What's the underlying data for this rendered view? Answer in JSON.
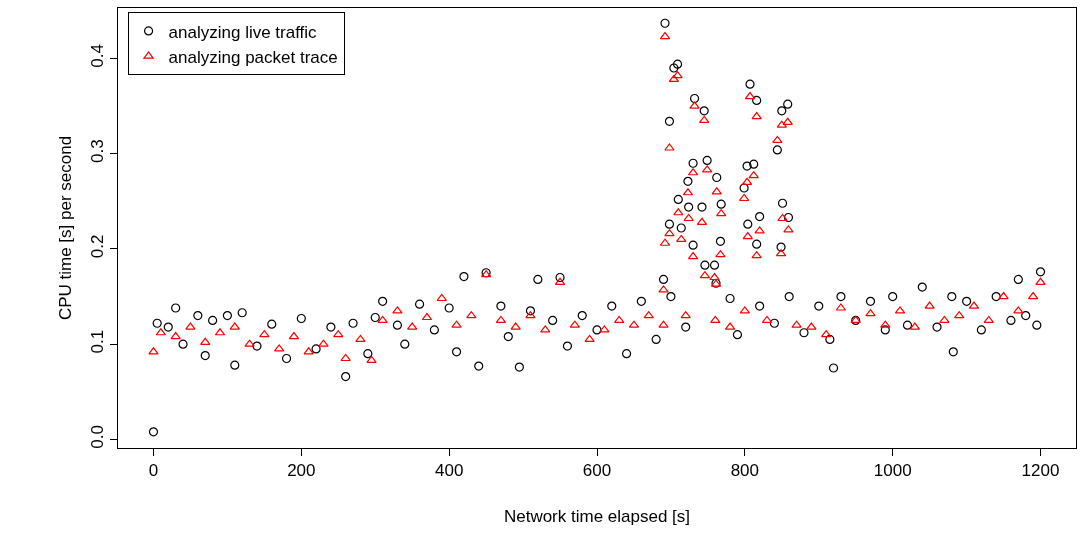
{
  "chart_data": {
    "type": "scatter",
    "xlabel": "Network time elapsed [s]",
    "ylabel": "CPU time [s] per second",
    "xlim": [
      -48,
      1248
    ],
    "ylim": [
      -0.009,
      0.453
    ],
    "xticks": [
      0,
      200,
      400,
      600,
      800,
      1000,
      1200
    ],
    "yticks": [
      {
        "value": 0,
        "label": "0.0"
      },
      {
        "value": 0.1,
        "label": "0.1"
      },
      {
        "value": 0.2,
        "label": "0.2"
      },
      {
        "value": 0.3,
        "label": "0.3"
      },
      {
        "value": 0.4,
        "label": "0.4"
      }
    ],
    "legend": "top left",
    "series": [
      {
        "name": "analyzing live traffic",
        "color": "#000000",
        "marker": "circle",
        "x": [
          0,
          5,
          20,
          30,
          40,
          60,
          70,
          80,
          100,
          110,
          120,
          140,
          160,
          180,
          200,
          220,
          240,
          260,
          270,
          290,
          300,
          310,
          330,
          340,
          360,
          380,
          400,
          410,
          420,
          440,
          450,
          470,
          480,
          495,
          510,
          520,
          540,
          550,
          560,
          580,
          600,
          620,
          640,
          660,
          680,
          690,
          692,
          698,
          698,
          700,
          704,
          709,
          710,
          714,
          720,
          723,
          724,
          730,
          730,
          732,
          742,
          745,
          746,
          749,
          759,
          761,
          762,
          767,
          768,
          780,
          790,
          799,
          803,
          804,
          807,
          812,
          816,
          816,
          820,
          820,
          840,
          844,
          849,
          850,
          851,
          858,
          859,
          860,
          880,
          900,
          915,
          920,
          930,
          950,
          970,
          990,
          1000,
          1020,
          1040,
          1060,
          1080,
          1082,
          1100,
          1120,
          1140,
          1160,
          1170,
          1180,
          1195,
          1200
        ],
        "values": [
          0.008,
          0.122,
          0.118,
          0.138,
          0.1,
          0.13,
          0.088,
          0.125,
          0.13,
          0.078,
          0.133,
          0.098,
          0.121,
          0.085,
          0.127,
          0.095,
          0.118,
          0.066,
          0.122,
          0.09,
          0.128,
          0.145,
          0.12,
          0.1,
          0.142,
          0.115,
          0.138,
          0.092,
          0.171,
          0.077,
          0.175,
          0.14,
          0.108,
          0.076,
          0.135,
          0.168,
          0.125,
          0.17,
          0.098,
          0.13,
          0.115,
          0.14,
          0.09,
          0.145,
          0.105,
          0.168,
          0.437,
          0.334,
          0.226,
          0.15,
          0.39,
          0.394,
          0.252,
          0.222,
          0.118,
          0.271,
          0.244,
          0.29,
          0.204,
          0.358,
          0.244,
          0.345,
          0.183,
          0.293,
          0.183,
          0.164,
          0.275,
          0.208,
          0.247,
          0.148,
          0.11,
          0.264,
          0.287,
          0.226,
          0.373,
          0.289,
          0.356,
          0.205,
          0.234,
          0.14,
          0.122,
          0.304,
          0.202,
          0.345,
          0.248,
          0.352,
          0.233,
          0.15,
          0.112,
          0.14,
          0.105,
          0.075,
          0.15,
          0.125,
          0.145,
          0.115,
          0.15,
          0.12,
          0.16,
          0.118,
          0.15,
          0.092,
          0.145,
          0.115,
          0.15,
          0.125,
          0.168,
          0.13,
          0.12,
          0.176
        ]
      },
      {
        "name": "analyzing packet trace",
        "color": "#ff0000",
        "marker": "triangle",
        "x": [
          0,
          10,
          30,
          50,
          70,
          90,
          110,
          130,
          150,
          170,
          190,
          210,
          230,
          250,
          260,
          280,
          295,
          310,
          330,
          350,
          370,
          390,
          410,
          430,
          450,
          470,
          490,
          510,
          530,
          550,
          570,
          590,
          610,
          630,
          650,
          670,
          690,
          690,
          692,
          692,
          698,
          698,
          704,
          709,
          710,
          714,
          720,
          723,
          724,
          730,
          730,
          732,
          742,
          745,
          746,
          749,
          759,
          760,
          761,
          762,
          767,
          768,
          780,
          799,
          800,
          803,
          804,
          807,
          812,
          816,
          816,
          820,
          830,
          844,
          849,
          850,
          851,
          858,
          859,
          870,
          890,
          910,
          930,
          950,
          970,
          990,
          1010,
          1030,
          1050,
          1070,
          1090,
          1110,
          1130,
          1150,
          1170,
          1190,
          1200
        ],
        "values": [
          0.092,
          0.112,
          0.108,
          0.118,
          0.102,
          0.112,
          0.118,
          0.1,
          0.11,
          0.095,
          0.108,
          0.092,
          0.1,
          0.11,
          0.085,
          0.105,
          0.083,
          0.125,
          0.135,
          0.118,
          0.128,
          0.148,
          0.12,
          0.13,
          0.173,
          0.125,
          0.118,
          0.13,
          0.115,
          0.165,
          0.12,
          0.105,
          0.115,
          0.125,
          0.12,
          0.13,
          0.12,
          0.157,
          0.423,
          0.206,
          0.306,
          0.216,
          0.378,
          0.382,
          0.238,
          0.21,
          0.13,
          0.259,
          0.232,
          0.28,
          0.192,
          0.35,
          0.228,
          0.335,
          0.172,
          0.283,
          0.17,
          0.125,
          0.163,
          0.26,
          0.194,
          0.237,
          0.118,
          0.253,
          0.135,
          0.27,
          0.213,
          0.36,
          0.277,
          0.339,
          0.193,
          0.219,
          0.125,
          0.314,
          0.195,
          0.33,
          0.232,
          0.333,
          0.22,
          0.12,
          0.118,
          0.11,
          0.138,
          0.125,
          0.132,
          0.12,
          0.135,
          0.118,
          0.14,
          0.125,
          0.13,
          0.14,
          0.125,
          0.15,
          0.135,
          0.15,
          0.165
        ]
      }
    ]
  }
}
